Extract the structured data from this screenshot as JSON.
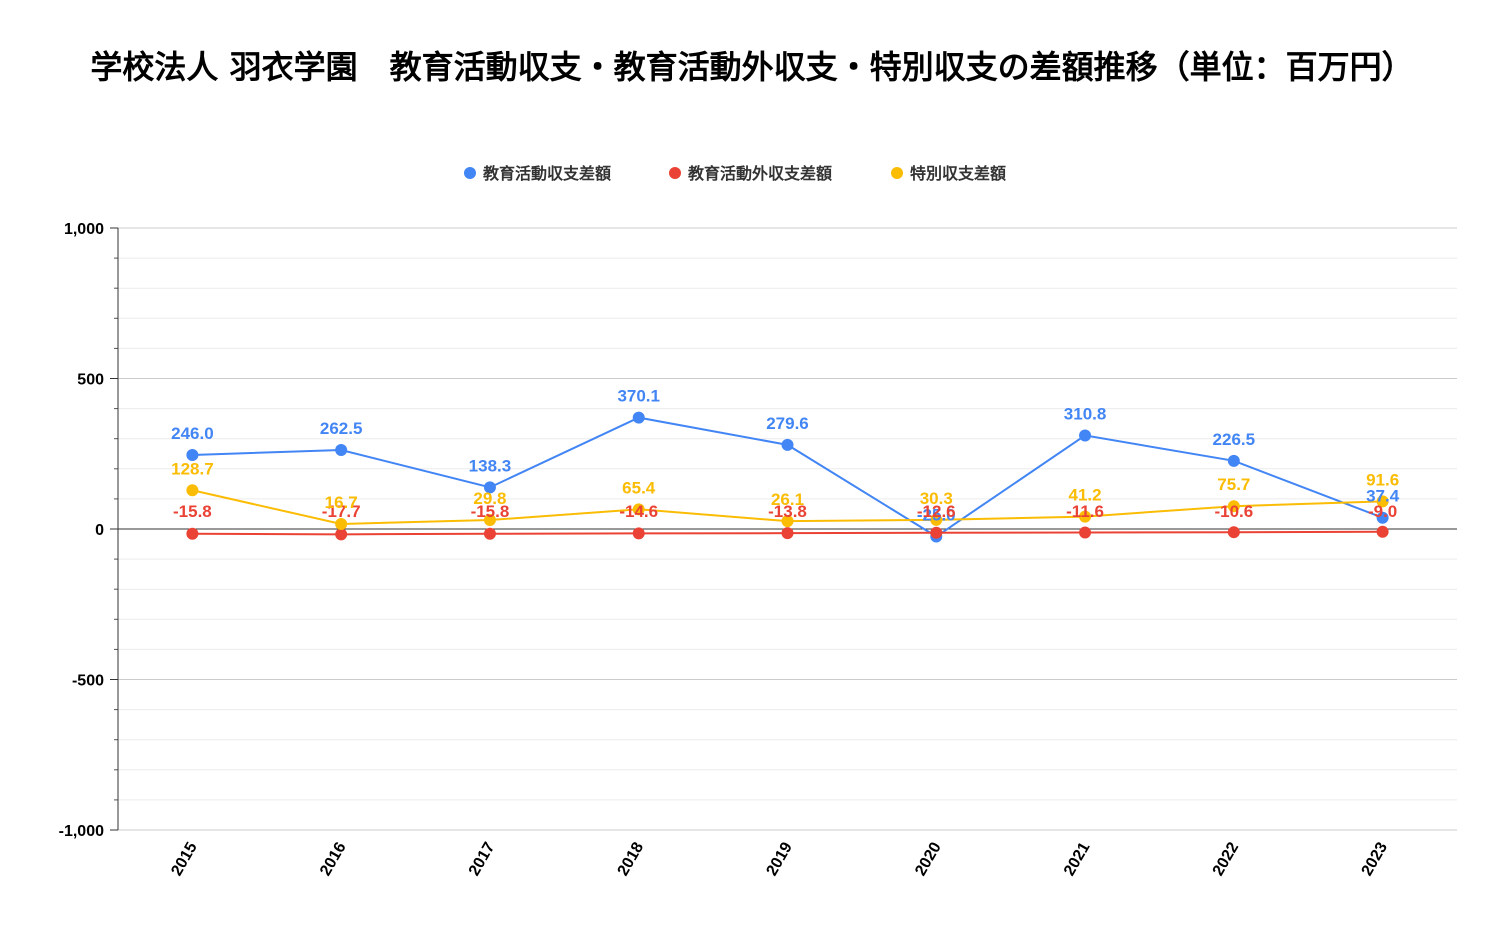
{
  "chart_data": {
    "type": "line",
    "title": "学校法人 羽衣学園　教育活動収支・教育活動外収支・特別収支の差額推移（単位：百万円）",
    "categories": [
      "2015",
      "2016",
      "2017",
      "2018",
      "2019",
      "2020",
      "2021",
      "2022",
      "2023"
    ],
    "series": [
      {
        "name": "教育活動収支差額",
        "color": "#4285F4",
        "values": [
          246.0,
          262.5,
          138.3,
          370.1,
          279.6,
          -25.0,
          310.8,
          226.5,
          37.4
        ],
        "labels": [
          "246.0",
          "262.5",
          "138.3",
          "370.1",
          "279.6",
          "-25.0",
          "310.8",
          "226.5",
          "37.4"
        ]
      },
      {
        "name": "教育活動外収支差額",
        "color": "#EA4335",
        "values": [
          -15.8,
          -17.7,
          -15.8,
          -14.6,
          -13.8,
          -12.6,
          -11.6,
          -10.6,
          -9.0
        ],
        "labels": [
          "-15.8",
          "-17.7",
          "-15.8",
          "-14.6",
          "-13.8",
          "-12.6",
          "-11.6",
          "-10.6",
          "-9.0"
        ]
      },
      {
        "name": "特別収支差額",
        "color": "#FBBC04",
        "values": [
          128.7,
          16.7,
          29.8,
          65.4,
          26.1,
          30.3,
          41.2,
          75.7,
          91.6
        ],
        "labels": [
          "128.7",
          "16.7",
          "29.8",
          "65.4",
          "26.1",
          "30.3",
          "41.2",
          "75.7",
          "91.6"
        ]
      }
    ],
    "ylim": [
      -1000,
      1000
    ],
    "yticks": [
      1000,
      500,
      0,
      -500,
      -1000
    ],
    "ytick_labels": [
      "1,000",
      "500",
      "0",
      "-500",
      "-1,000"
    ],
    "xlabel": "",
    "ylabel": "",
    "grid": true,
    "legend_position": "top"
  }
}
